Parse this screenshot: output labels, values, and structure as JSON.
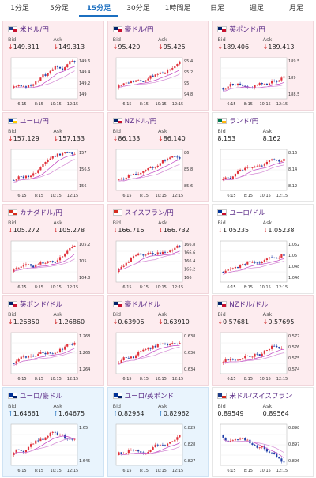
{
  "tabs": [
    {
      "label": "1分足",
      "active": false
    },
    {
      "label": "5分足",
      "active": false
    },
    {
      "label": "15分足",
      "active": true
    },
    {
      "label": "30分足",
      "active": false
    },
    {
      "label": "1時間足",
      "active": false
    },
    {
      "label": "日足",
      "active": false
    },
    {
      "label": "週足",
      "active": false
    },
    {
      "label": "月足",
      "active": false
    }
  ],
  "labels": {
    "bid": "Bid",
    "ask": "Ask"
  },
  "time_labels": [
    "6:15",
    "8:15",
    "10:15",
    "12:15"
  ],
  "pairs": [
    {
      "name": "米ドル/円",
      "bid": "149.311",
      "ask": "149.313",
      "dir": "down",
      "bg": "pink",
      "flag": [
        "#1f3c88",
        "#c8102e"
      ],
      "yticks": [
        "149.6",
        "149.4",
        "149.2",
        "149"
      ],
      "trend": "up"
    },
    {
      "name": "豪ドル/円",
      "bid": "95.420",
      "ask": "95.425",
      "dir": "down",
      "bg": "pink",
      "flag": [
        "#012169",
        "#c8102e"
      ],
      "yticks": [
        "95.4",
        "95.2",
        "95",
        "94.8"
      ],
      "trend": "up"
    },
    {
      "name": "英ポンド/円",
      "bid": "189.406",
      "ask": "189.413",
      "dir": "down",
      "bg": "pink",
      "flag": [
        "#012169",
        "#c8102e"
      ],
      "yticks": [
        "189.5",
        "189",
        "188.5"
      ],
      "trend": "up"
    },
    {
      "name": "ユーロ/円",
      "bid": "157.129",
      "ask": "157.133",
      "dir": "down",
      "bg": "pink",
      "flag": [
        "#003399",
        "#ffcc00"
      ],
      "yticks": [
        "157",
        "156.5",
        "156"
      ],
      "trend": "up"
    },
    {
      "name": "NZドル/円",
      "bid": "86.133",
      "ask": "86.140",
      "dir": "down",
      "bg": "pink",
      "flag": [
        "#012169",
        "#c8102e"
      ],
      "yticks": [
        "86",
        "85.8",
        "85.6"
      ],
      "trend": "up"
    },
    {
      "name": "ランド/円",
      "bid": "8.153",
      "ask": "8.162",
      "dir": "flat",
      "bg": "white",
      "flag": [
        "#007a4d",
        "#ffb612"
      ],
      "yticks": [
        "8.16",
        "8.14",
        "8.12"
      ],
      "trend": "up"
    },
    {
      "name": "カナダドル/円",
      "bid": "105.272",
      "ask": "105.278",
      "dir": "down",
      "bg": "pink",
      "flag": [
        "#d52b1e",
        "#d52b1e"
      ],
      "yticks": [
        "105.2",
        "105",
        "104.8"
      ],
      "trend": "up"
    },
    {
      "name": "スイスフラン/円",
      "bid": "166.716",
      "ask": "166.732",
      "dir": "down",
      "bg": "pink",
      "flag": [
        "#d52b1e",
        "#ffffff"
      ],
      "yticks": [
        "166.8",
        "166.6",
        "166.4",
        "166.2",
        "166"
      ],
      "trend": "up"
    },
    {
      "name": "ユーロ/ドル",
      "bid": "1.05235",
      "ask": "1.05238",
      "dir": "down",
      "bg": "white",
      "flag": [
        "#003399",
        "#c8102e"
      ],
      "yticks": [
        "1.052",
        "1.05",
        "1.048",
        "1.046"
      ],
      "trend": "up"
    },
    {
      "name": "英ポンド/ドル",
      "bid": "1.26850",
      "ask": "1.26860",
      "dir": "down",
      "bg": "pink",
      "flag": [
        "#012169",
        "#c8102e"
      ],
      "yticks": [
        "1.268",
        "1.266",
        "1.264"
      ],
      "trend": "up"
    },
    {
      "name": "豪ドル/ドル",
      "bid": "0.63906",
      "ask": "0.63910",
      "dir": "down",
      "bg": "pink",
      "flag": [
        "#012169",
        "#c8102e"
      ],
      "yticks": [
        "0.638",
        "0.636",
        "0.634"
      ],
      "trend": "up"
    },
    {
      "name": "NZドル/ドル",
      "bid": "0.57681",
      "ask": "0.57695",
      "dir": "down",
      "bg": "pink",
      "flag": [
        "#012169",
        "#c8102e"
      ],
      "yticks": [
        "0.577",
        "0.576",
        "0.575",
        "0.574"
      ],
      "trend": "up"
    },
    {
      "name": "ユーロ/豪ドル",
      "bid": "1.64661",
      "ask": "1.64675",
      "dir": "up",
      "bg": "blue",
      "flag": [
        "#003399",
        "#012169"
      ],
      "yticks": [
        "1.65",
        "1.645"
      ],
      "trend": "updown"
    },
    {
      "name": "ユーロ/英ポンド",
      "bid": "0.82954",
      "ask": "0.82962",
      "dir": "up",
      "bg": "blue",
      "flag": [
        "#003399",
        "#012169"
      ],
      "yticks": [
        "0.829",
        "0.828",
        "0.827"
      ],
      "trend": "up"
    },
    {
      "name": "米ドル/スイスフラン",
      "bid": "0.89549",
      "ask": "0.89564",
      "dir": "flat",
      "bg": "white",
      "flag": [
        "#1f3c88",
        "#d52b1e"
      ],
      "yticks": [
        "0.898",
        "0.897",
        "0.896"
      ],
      "trend": "down"
    }
  ]
}
